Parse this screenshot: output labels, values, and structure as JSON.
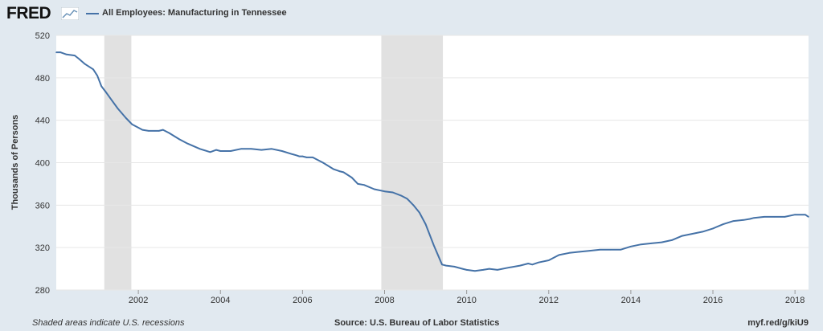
{
  "header": {
    "logo_text": "FRED",
    "series_label": "All Employees: Manufacturing in Tennessee"
  },
  "footer": {
    "recession_note": "Shaded areas indicate U.S. recessions",
    "source": "Source: U.S. Bureau of Labor Statistics",
    "short_url": "myf.red/g/kiU9"
  },
  "colors": {
    "line": "#4572a7",
    "recession": "#e1e1e1",
    "grid": "#e6e6e6",
    "plot_bg": "#ffffff",
    "page_bg": "#e1e9f0"
  },
  "chart_data": {
    "type": "line",
    "title": "",
    "xlabel": "",
    "ylabel": "Thousands of Persons",
    "xlim": [
      2000.0,
      2018.33
    ],
    "ylim": [
      280,
      520
    ],
    "yticks": [
      280,
      320,
      360,
      400,
      440,
      480,
      520
    ],
    "xticks": [
      "2002",
      "2004",
      "2006",
      "2008",
      "2010",
      "2012",
      "2014",
      "2016",
      "2018"
    ],
    "grid": "horizontal",
    "recessions": [
      [
        2001.17,
        2001.83
      ],
      [
        2007.92,
        2009.42
      ]
    ],
    "series": [
      {
        "name": "All Employees: Manufacturing in Tennessee",
        "x": [
          2000.0,
          2000.1,
          2000.25,
          2000.45,
          2000.55,
          2000.7,
          2000.9,
          2001.0,
          2001.1,
          2001.2,
          2001.35,
          2001.5,
          2001.7,
          2001.85,
          2002.0,
          2002.1,
          2002.25,
          2002.4,
          2002.5,
          2002.6,
          2002.75,
          2003.0,
          2003.2,
          2003.5,
          2003.75,
          2003.9,
          2004.0,
          2004.25,
          2004.5,
          2004.75,
          2005.0,
          2005.25,
          2005.5,
          2005.75,
          2005.85,
          2005.92,
          2006.0,
          2006.1,
          2006.25,
          2006.5,
          2006.75,
          2006.9,
          2007.0,
          2007.2,
          2007.35,
          2007.5,
          2007.75,
          2008.0,
          2008.2,
          2008.4,
          2008.55,
          2008.7,
          2008.85,
          2009.0,
          2009.2,
          2009.4,
          2009.5,
          2009.7,
          2009.9,
          2010.0,
          2010.2,
          2010.4,
          2010.55,
          2010.75,
          2011.0,
          2011.3,
          2011.5,
          2011.6,
          2011.75,
          2012.0,
          2012.25,
          2012.5,
          2012.75,
          2013.0,
          2013.25,
          2013.5,
          2013.75,
          2014.0,
          2014.25,
          2014.5,
          2014.75,
          2015.0,
          2015.25,
          2015.5,
          2015.75,
          2016.0,
          2016.25,
          2016.5,
          2016.75,
          2016.9,
          2017.0,
          2017.25,
          2017.5,
          2017.75,
          2018.0,
          2018.25,
          2018.33
        ],
        "values": [
          504,
          504,
          502,
          501,
          498,
          493,
          488,
          482,
          472,
          467,
          459,
          451,
          442,
          436,
          433,
          431,
          430,
          430,
          430,
          431,
          428,
          422,
          418,
          413,
          410,
          412,
          411,
          411,
          413,
          413,
          412,
          413,
          411,
          408,
          407,
          406,
          406,
          405,
          405,
          400,
          394,
          392,
          391,
          386,
          380,
          379,
          375,
          373,
          372,
          369,
          366,
          360,
          353,
          342,
          322,
          304,
          303,
          302,
          300,
          299,
          298,
          299,
          300,
          299,
          301,
          303,
          305,
          304,
          306,
          308,
          313,
          315,
          316,
          317,
          318,
          318,
          318,
          321,
          323,
          324,
          325,
          327,
          331,
          333,
          335,
          338,
          342,
          345,
          346,
          347,
          348,
          349,
          349,
          349,
          351,
          351,
          349
        ]
      }
    ]
  }
}
